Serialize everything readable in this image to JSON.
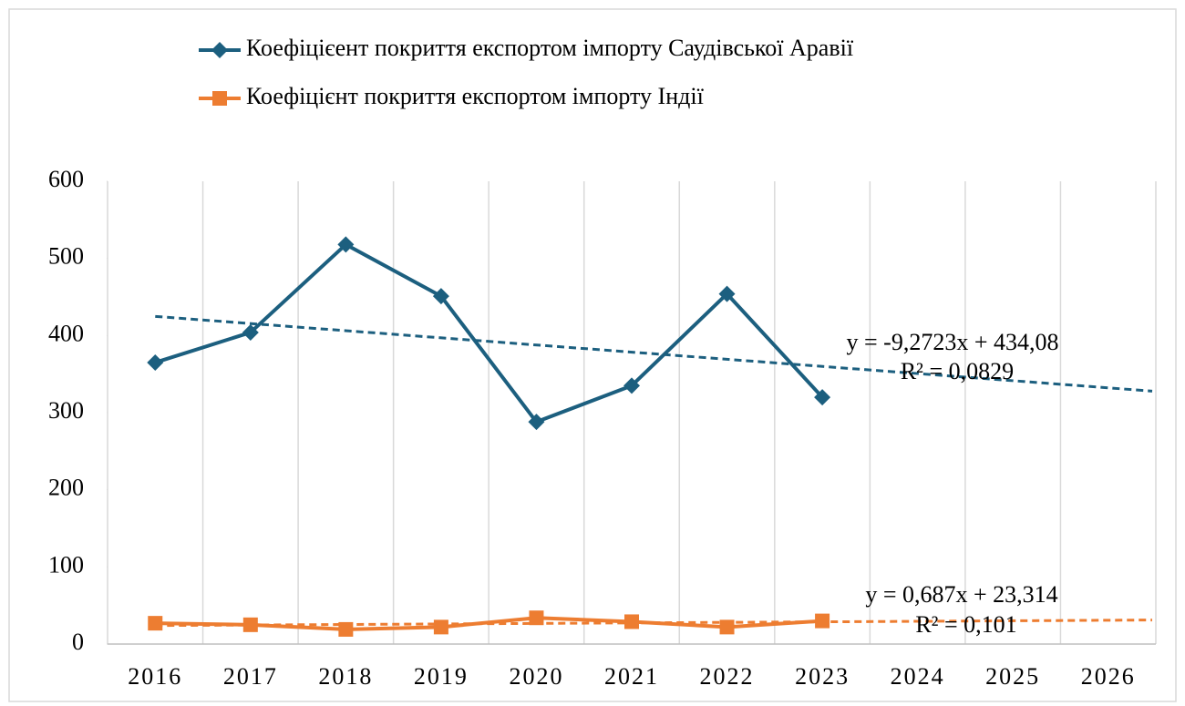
{
  "chart_data": {
    "type": "line",
    "categories": [
      "2016",
      "2017",
      "2018",
      "2019",
      "2020",
      "2021",
      "2022",
      "2023",
      "2024",
      "2025",
      "2026"
    ],
    "series": [
      {
        "name": "Коефіцієент покриття експортом імпорту Саудівської Аравії",
        "color": "#1c5f7f",
        "marker": "diamond",
        "values": [
          365,
          404,
          518,
          451,
          288,
          335,
          454,
          320,
          null,
          null,
          null
        ],
        "trendline": {
          "slope": -9.2723,
          "intercept": 434.08,
          "equation": "y = -9,2723x + 434,08",
          "r2": "R² = 0,0829"
        }
      },
      {
        "name": "Коефіцієнт покриття експортом імпорту Індії",
        "color": "#ed7d31",
        "marker": "square",
        "values": [
          27,
          25,
          19,
          22,
          34,
          29,
          22,
          30,
          null,
          null,
          null
        ],
        "trendline": {
          "slope": 0.687,
          "intercept": 23.314,
          "equation": "y = 0,687x + 23,314",
          "r2": "R² = 0,101"
        }
      }
    ],
    "ylim": [
      0,
      600
    ],
    "yticks": [
      0,
      100,
      200,
      300,
      400,
      500,
      600
    ],
    "grid": "vertical",
    "legend": "top"
  }
}
